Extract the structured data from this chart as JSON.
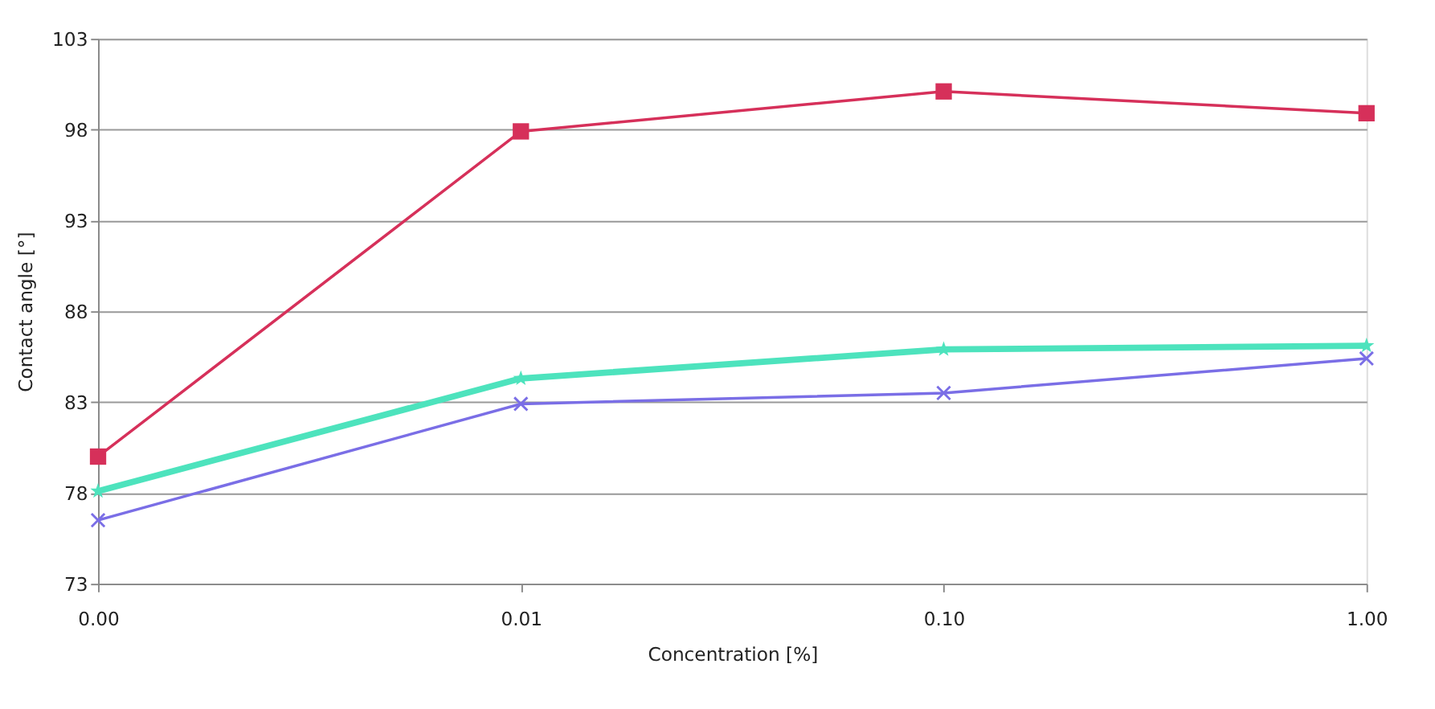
{
  "chart_data": {
    "type": "line",
    "xlabel": "Concentration [%]",
    "ylabel": "Contact angle [°]",
    "categories": [
      "0.00",
      "0.01",
      "0.10",
      "1.00"
    ],
    "series": [
      {
        "color": "#d6305a",
        "values": [
          80.0,
          97.9,
          100.1,
          98.9
        ],
        "marker": "square"
      },
      {
        "color": "#4de3bd",
        "values": [
          78.1,
          84.3,
          85.9,
          86.1
        ],
        "marker": "star"
      },
      {
        "color": "#7a6ee6",
        "values": [
          76.5,
          82.9,
          83.5,
          85.4
        ],
        "marker": "cross"
      }
    ],
    "ylim": [
      73,
      103
    ],
    "yticks": [
      73,
      78,
      83,
      88,
      93,
      98,
      103
    ],
    "grid": "y",
    "line_style": "solid"
  }
}
